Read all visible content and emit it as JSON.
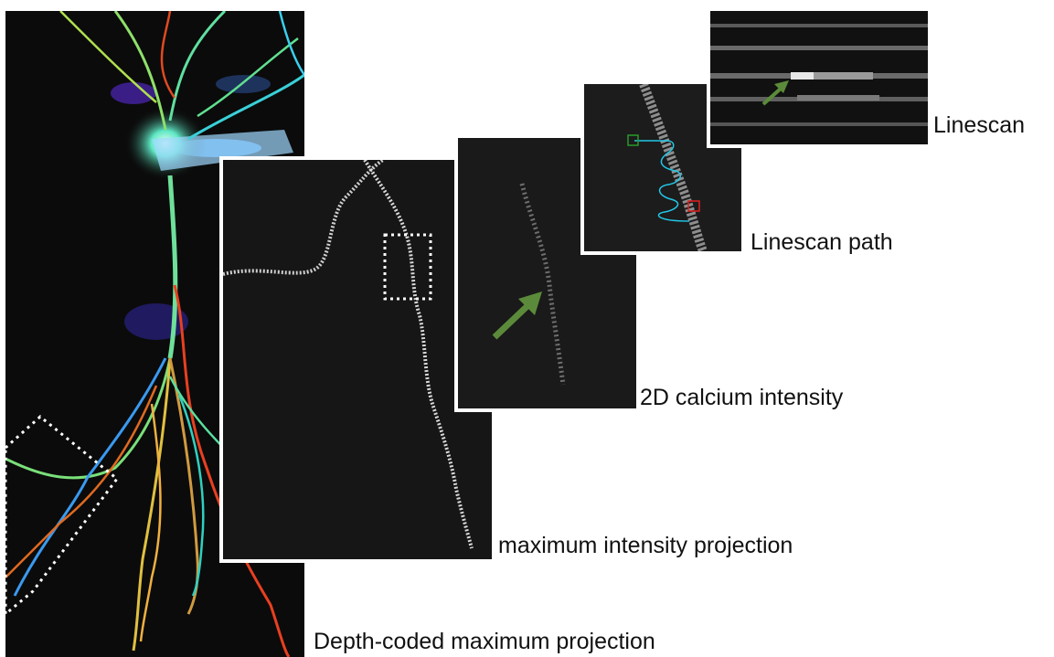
{
  "labels": {
    "depth_coded": "Depth-coded maximum projection",
    "max_intensity": "maximum intensity projection",
    "calcium_2d": "2D calcium intensity",
    "linescan_path": "Linescan path",
    "linescan": "Linescan"
  },
  "colors": {
    "arrow": "#5b8b3a",
    "path_line": "#22c7e6",
    "path_start_marker": "#2a9a2a",
    "path_end_marker": "#e02020",
    "roi_box": "#ffffff"
  },
  "icons": {
    "arrow_2d": "arrow-icon",
    "arrow_linescan": "arrow-icon"
  }
}
